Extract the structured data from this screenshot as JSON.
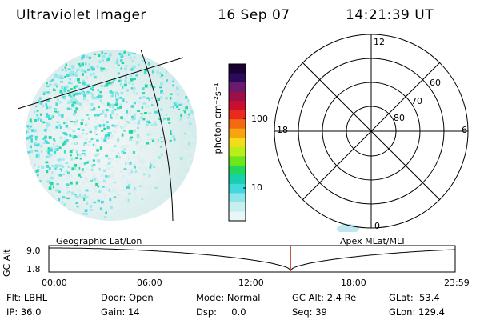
{
  "header": {
    "instrument": "Ultraviolet Imager",
    "date": "16 Sep 07",
    "time": "14:21:39 UT"
  },
  "colorbar": {
    "unit_label": "photon cm⁻²s⁻¹",
    "ticks": [
      "100",
      "10"
    ],
    "colors": [
      "#1a0033",
      "#2b0a5e",
      "#6a1b6e",
      "#9a1048",
      "#c8102e",
      "#ea2a1e",
      "#f36a12",
      "#f8a410",
      "#f2dd18",
      "#b9ee1a",
      "#6ee61c",
      "#22d85a",
      "#19d0ae",
      "#40d9dc",
      "#8ee6ea",
      "#c7efef",
      "#e8f6f6"
    ]
  },
  "polar": {
    "hour_labels": {
      "top": "12",
      "left": "18",
      "right": "6",
      "bottom": "0"
    },
    "lat_labels": [
      "60",
      "70",
      "80"
    ]
  },
  "orbit": {
    "left_label": "Geographic Lat/Lon",
    "right_label": "Apex  MLat/MLT",
    "axis_label": "GC Alt",
    "y_ticks": [
      "9.0",
      "1.8"
    ],
    "x_ticks": [
      "00:00",
      "06:00",
      "12:00",
      "18:00",
      "23:59"
    ],
    "current_time_fraction": 0.595
  },
  "info": {
    "col1": [
      "Flt: LBHL",
      "IP: 36.0"
    ],
    "col2": [
      "Door: Open",
      "Gain: 14"
    ],
    "col3": [
      "Mode: Normal",
      "Dsp:     0.0"
    ],
    "col4": [
      "GC Alt: 2.4 Re",
      "Seq: 39"
    ],
    "col5": [
      "GLat:  53.4",
      "GLon: 129.4"
    ]
  }
}
